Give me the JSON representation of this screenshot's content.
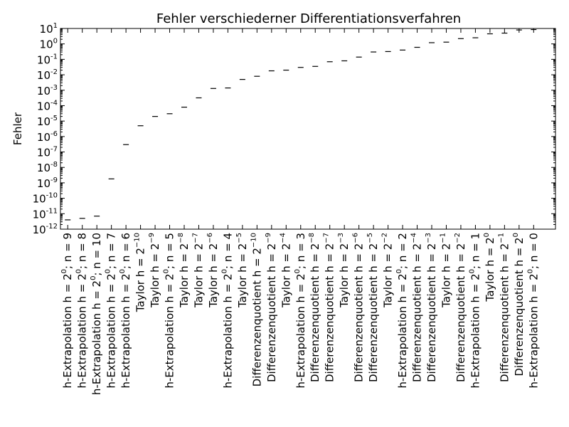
{
  "chart_data": {
    "type": "scatter",
    "title": "Fehler verschiederner Differentiationsverfahren",
    "xlabel": "",
    "ylabel": "Fehler",
    "yscale": "log",
    "ylim": [
      1e-12,
      10
    ],
    "xlim": [
      -0.5,
      33.5
    ],
    "grid": false,
    "marker": "horizontal-dash",
    "categories": [
      [
        "h-Extrapolation h = 2",
        "0",
        "; n = 9"
      ],
      [
        "h-Extrapolation h = 2",
        "0",
        "; n = 8"
      ],
      [
        "h-Extrapolation h = 2",
        "0",
        "; n = 10"
      ],
      [
        "h-Extrapolation h = 2",
        "0",
        "; n = 7"
      ],
      [
        "h-Extrapolation h = 2",
        "0",
        "; n = 6"
      ],
      [
        "Taylor h = 2",
        "−10",
        ""
      ],
      [
        "Taylor h = 2",
        "−9",
        ""
      ],
      [
        "h-Extrapolation h = 2",
        "0",
        "; n = 5"
      ],
      [
        "Taylor h = 2",
        "−8",
        ""
      ],
      [
        "Taylor h = 2",
        "−7",
        ""
      ],
      [
        "Taylor h = 2",
        "−6",
        ""
      ],
      [
        "h-Extrapolation h = 2",
        "0",
        "; n = 4"
      ],
      [
        "Taylor h = 2",
        "−5",
        ""
      ],
      [
        "Differenzenquotient h = 2",
        "−10",
        ""
      ],
      [
        "Differenzenquotient h = 2",
        "−9",
        ""
      ],
      [
        "Taylor h = 2",
        "−4",
        ""
      ],
      [
        "h-Extrapolation h = 2",
        "0",
        "; n = 3"
      ],
      [
        "Differenzenquotient h = 2",
        "−8",
        ""
      ],
      [
        "Differenzenquotient h = 2",
        "−7",
        ""
      ],
      [
        "Taylor h = 2",
        "−3",
        ""
      ],
      [
        "Differenzenquotient h = 2",
        "−6",
        ""
      ],
      [
        "Differenzenquotient h = 2",
        "−5",
        ""
      ],
      [
        "Taylor h = 2",
        "−2",
        ""
      ],
      [
        "h-Extrapolation h = 2",
        "0",
        "; n = 2"
      ],
      [
        "Differenzenquotient h = 2",
        "−4",
        ""
      ],
      [
        "Differenzenquotient h = 2",
        "−3",
        ""
      ],
      [
        "Taylor h = 2",
        "−1",
        ""
      ],
      [
        "Differenzenquotient h = 2",
        "−2",
        ""
      ],
      [
        "h-Extrapolation h = 2",
        "0",
        "; n = 1"
      ],
      [
        "Taylor h = 2",
        "0",
        ""
      ],
      [
        "Differenzenquotient h = 2",
        "−1",
        ""
      ],
      [
        "Differenzenquotient h = 2",
        "0",
        ""
      ],
      [
        "h-Extrapolation h = 2",
        "0",
        "; n = 0"
      ]
    ],
    "values": [
      4e-12,
      5e-12,
      7e-12,
      1.8e-09,
      3e-07,
      5e-06,
      2e-05,
      3e-05,
      8e-05,
      0.00032,
      0.0013,
      0.0014,
      0.005,
      0.008,
      0.018,
      0.02,
      0.03,
      0.035,
      0.07,
      0.08,
      0.14,
      0.3,
      0.32,
      0.4,
      0.6,
      1.2,
      1.3,
      2.2,
      2.5,
      4.5,
      5,
      8,
      8.5
    ],
    "yticks": [
      {
        "base": "10",
        "exp": "-12"
      },
      {
        "base": "10",
        "exp": "-11"
      },
      {
        "base": "10",
        "exp": "-10"
      },
      {
        "base": "10",
        "exp": "-9"
      },
      {
        "base": "10",
        "exp": "-8"
      },
      {
        "base": "10",
        "exp": "-7"
      },
      {
        "base": "10",
        "exp": "-6"
      },
      {
        "base": "10",
        "exp": "-5"
      },
      {
        "base": "10",
        "exp": "-4"
      },
      {
        "base": "10",
        "exp": "-3"
      },
      {
        "base": "10",
        "exp": "-2"
      },
      {
        "base": "10",
        "exp": "-1"
      },
      {
        "base": "10",
        "exp": "0"
      },
      {
        "base": "10",
        "exp": "1"
      }
    ]
  }
}
